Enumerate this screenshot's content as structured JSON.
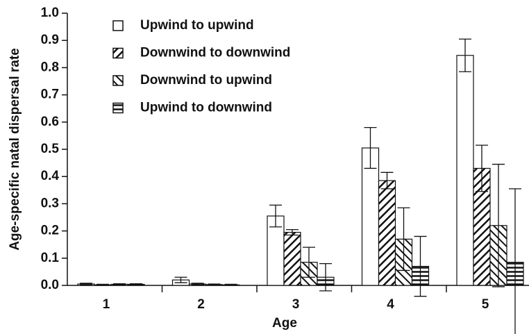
{
  "chart_data": {
    "type": "bar",
    "xlabel": "Age",
    "ylabel": "Age-specific natal dispersal rate",
    "categories": [
      "1",
      "2",
      "3",
      "4",
      "5"
    ],
    "series": [
      {
        "name": "Upwind to upwind",
        "color": "#111111",
        "pattern": "none",
        "values": [
          0.005,
          0.02,
          0.255,
          0.505,
          0.845
        ],
        "errors": [
          0.003,
          0.01,
          0.04,
          0.075,
          0.06
        ]
      },
      {
        "name": "Downwind to downwind",
        "color": "#111111",
        "pattern": "back-diagonal",
        "values": [
          0.002,
          0.005,
          0.195,
          0.385,
          0.43
        ],
        "errors": [
          0.002,
          0.003,
          0.01,
          0.03,
          0.085
        ]
      },
      {
        "name": "Downwind to upwind",
        "color": "#111111",
        "pattern": "diagonal",
        "values": [
          0.004,
          0.003,
          0.085,
          0.17,
          0.22
        ],
        "errors": [
          0.002,
          0.002,
          0.055,
          0.115,
          0.225
        ]
      },
      {
        "name": "Upwind to downwind",
        "color": "#111111",
        "pattern": "horizontal",
        "values": [
          0.004,
          0.002,
          0.03,
          0.07,
          0.085
        ],
        "errors": [
          0.002,
          0.002,
          0.05,
          0.11,
          0.27
        ]
      }
    ],
    "ylim": [
      0,
      1.0
    ],
    "yticks": [
      {
        "value": 0,
        "label": "0.0"
      },
      0.1,
      0.2,
      0.3,
      0.4,
      0.5,
      0.6,
      0.7,
      0.8,
      0.9,
      {
        "value": 1.0,
        "label": "1.0"
      }
    ],
    "legend": "upper left",
    "grid": false
  }
}
